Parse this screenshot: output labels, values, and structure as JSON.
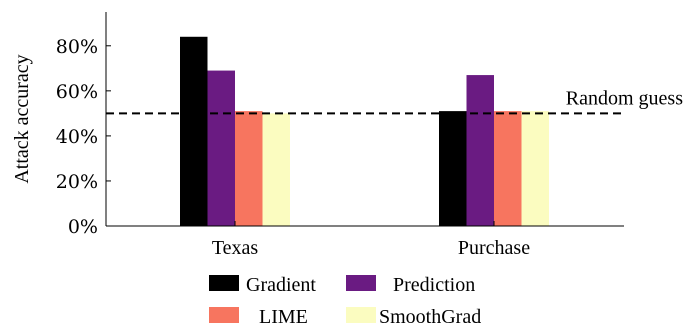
{
  "chart_data": {
    "type": "bar",
    "ylabel": "Attack accuracy",
    "ylim": [
      0,
      95
    ],
    "yticks": [
      0,
      20,
      40,
      60,
      80
    ],
    "ytick_labels": [
      "0%",
      "20%",
      "40%",
      "60%",
      "80%"
    ],
    "categories": [
      "Texas",
      "Purchase"
    ],
    "series": [
      {
        "name": "Gradient",
        "color": "#000000",
        "values": [
          84,
          51
        ]
      },
      {
        "name": "Prediction",
        "color": "#6a1b82",
        "values": [
          69,
          67
        ]
      },
      {
        "name": "LIME",
        "color": "#f7755f",
        "values": [
          51,
          51
        ]
      },
      {
        "name": "SmoothGrad",
        "color": "#fbfcc0",
        "values": [
          50,
          51
        ]
      }
    ],
    "reference_line": {
      "value": 50,
      "label": "Random guess",
      "style": "dashed"
    },
    "legend": {
      "placement": "bottom",
      "columns": 2
    },
    "grid": false
  }
}
